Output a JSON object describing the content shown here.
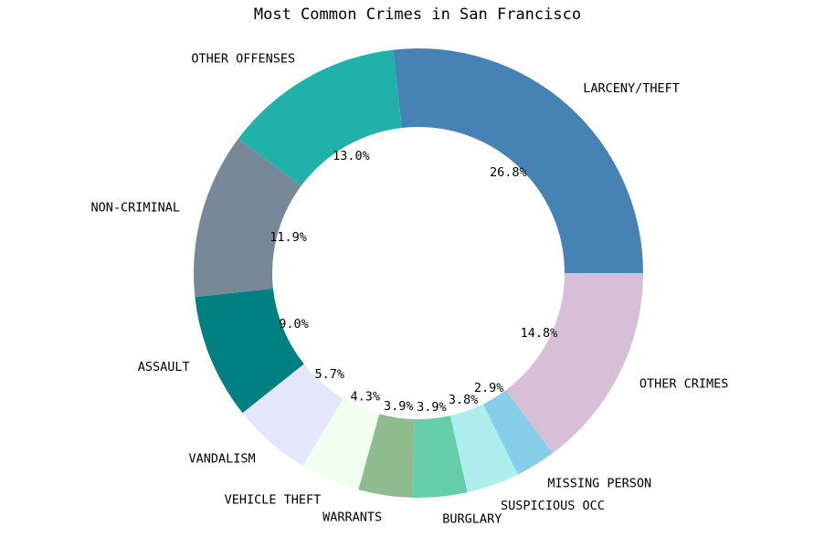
{
  "chart_data": {
    "type": "pie",
    "style": "donut",
    "title": "Most Common Crimes in San Francisco",
    "slices": [
      {
        "label": "LARCENY/THEFT",
        "pct_label": "26.8%",
        "value": 26.8,
        "color": "#4682b4"
      },
      {
        "label": "OTHER OFFENSES",
        "pct_label": "13.0%",
        "value": 13.0,
        "color": "#20b2aa"
      },
      {
        "label": "NON-CRIMINAL",
        "pct_label": "11.9%",
        "value": 11.9,
        "color": "#778899"
      },
      {
        "label": "ASSAULT",
        "pct_label": "9.0%",
        "value": 9.0,
        "color": "#008080"
      },
      {
        "label": "VANDALISM",
        "pct_label": "5.7%",
        "value": 5.7,
        "color": "#e6e6fa"
      },
      {
        "label": "VEHICLE THEFT",
        "pct_label": "4.3%",
        "value": 4.3,
        "color": "#f0fff0"
      },
      {
        "label": "WARRANTS",
        "pct_label": "3.9%",
        "value": 3.9,
        "color": "#8fbc8f"
      },
      {
        "label": "BURGLARY",
        "pct_label": "3.9%",
        "value": 3.9,
        "color": "#66cdaa"
      },
      {
        "label": "SUSPICIOUS OCC",
        "pct_label": "3.8%",
        "value": 3.8,
        "color": "#afeeee"
      },
      {
        "label": "MISSING PERSON",
        "pct_label": "2.9%",
        "value": 2.9,
        "color": "#87ceeb"
      },
      {
        "label": "OTHER CRIMES",
        "pct_label": "14.8%",
        "value": 14.8,
        "color": "#d8bfd8"
      }
    ]
  }
}
